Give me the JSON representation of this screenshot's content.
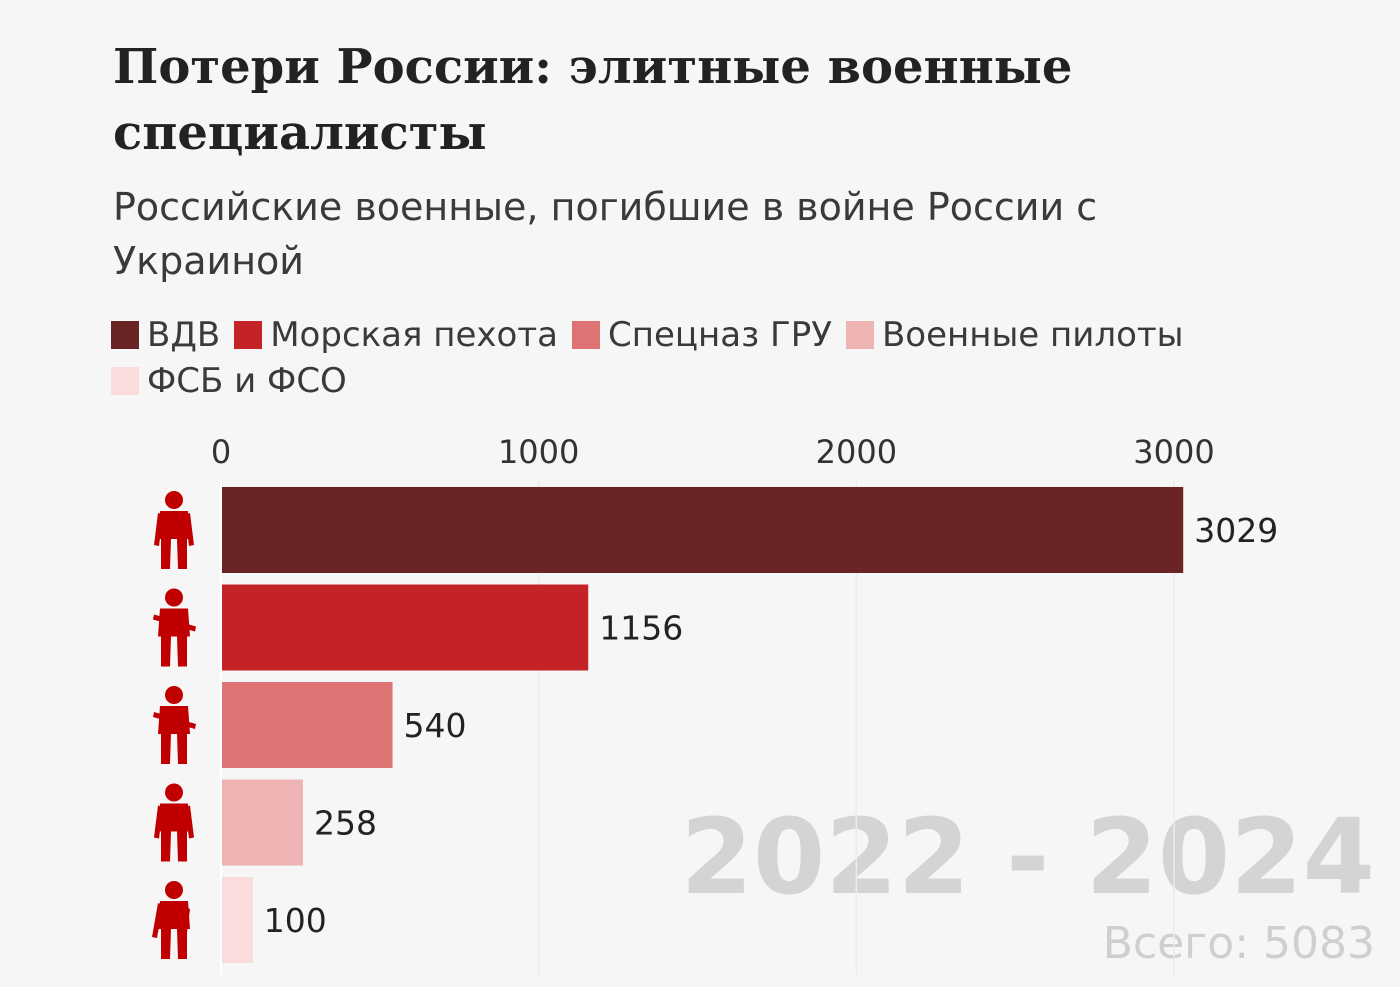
{
  "chart_data": {
    "type": "bar",
    "orientation": "horizontal",
    "title": "Потери России: элитные военные специалисты",
    "subtitle": "Российские военные, погибшие в войне России с Украиной",
    "categories": [
      "ВДВ",
      "Морская пехота",
      "Спецназ ГРУ",
      "Военные пилоты",
      "ФСБ и ФСО"
    ],
    "values": [
      3029,
      1156,
      540,
      258,
      100
    ],
    "colors": [
      "#6b2426",
      "#c32226",
      "#dd7373",
      "#eeb4b4",
      "#fadcdc"
    ],
    "data_labels": [
      "3029",
      "1156",
      "540",
      "258",
      "100"
    ],
    "xlim": [
      0,
      3000
    ],
    "xticks": [
      0,
      1000,
      2000,
      3000
    ],
    "xtick_labels": [
      "0",
      "1000",
      "2000",
      "3000"
    ],
    "xaxis_position": "top",
    "grid": true,
    "legend_position": "top",
    "period_label": "2022 - 2024",
    "total_label": "Всего: 5083",
    "icon_color": "#c00000",
    "icons": [
      "paratrooper-icon",
      "marine-icon",
      "special-forces-icon",
      "pilot-icon",
      "security-officer-icon"
    ]
  }
}
